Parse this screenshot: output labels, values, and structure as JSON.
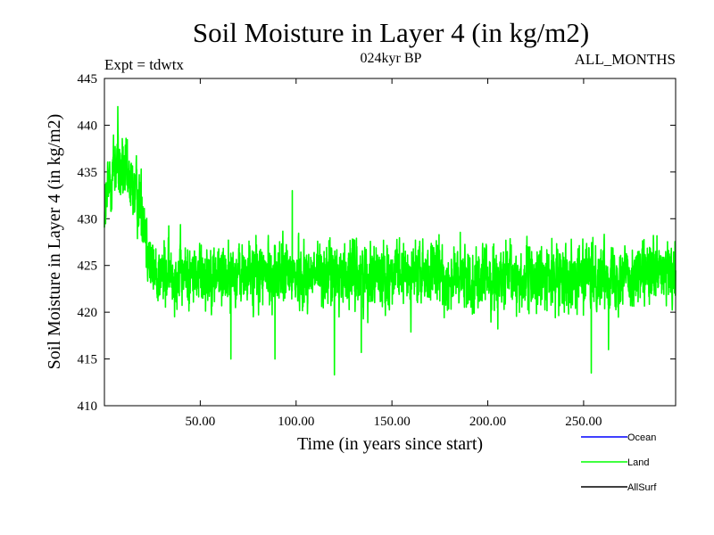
{
  "chart_data": {
    "type": "line",
    "title": "Soil Moisture in Layer 4 (in kg/m2)",
    "experiment_label": "Expt = tdwtx",
    "subtitle": "024kyr BP",
    "period_label": "ALL_MONTHS",
    "xlabel": "Time (in years since start)",
    "ylabel": "Soil Moisture in Layer 4 (in kg/m2)",
    "xlim": [
      0,
      298
    ],
    "ylim": [
      410,
      445
    ],
    "x_ticks": [
      50,
      100,
      150,
      200,
      250
    ],
    "x_tick_labels": [
      "50.00",
      "100.00",
      "150.00",
      "200.00",
      "250.00"
    ],
    "y_ticks": [
      410,
      415,
      420,
      425,
      430,
      435,
      440,
      445
    ],
    "y_tick_labels": [
      "410",
      "415",
      "420",
      "425",
      "430",
      "435",
      "440",
      "445"
    ],
    "series": [
      {
        "name": "Land",
        "color": "#00ff00",
        "samples_per_year": 12,
        "x": [
          0,
          3,
          6,
          9,
          12,
          15,
          18,
          21,
          24,
          27,
          30,
          40,
          50,
          60,
          70,
          80,
          90,
          100,
          110,
          120,
          130,
          140,
          150,
          160,
          170,
          180,
          190,
          200,
          210,
          220,
          230,
          240,
          250,
          260,
          270,
          280,
          290,
          298
        ],
        "mean": [
          431,
          434,
          436,
          435,
          434,
          433,
          432,
          430,
          425,
          424,
          424,
          424,
          424,
          424,
          424,
          424,
          424,
          424,
          424,
          424,
          424,
          424,
          424,
          424,
          424,
          423.5,
          423.5,
          423.5,
          423.5,
          423.5,
          423.5,
          424,
          424,
          424,
          424,
          424,
          424,
          424
        ],
        "amplitude": [
          3,
          4,
          4,
          4,
          3.5,
          3.5,
          3.5,
          3.5,
          3.5,
          3.2,
          3.2,
          3.2,
          3.2,
          3.2,
          3.2,
          3.2,
          3.2,
          3.2,
          3.2,
          3.2,
          3.2,
          3.2,
          3.2,
          3.2,
          3.2,
          3.2,
          3.2,
          3.2,
          3.2,
          3.2,
          3.2,
          3.2,
          3.2,
          3.2,
          3.2,
          3.2,
          3.2,
          3.2
        ],
        "peaks": [
          {
            "x": 7,
            "y": 442
          },
          {
            "x": 66,
            "y": 415
          },
          {
            "x": 89,
            "y": 415
          },
          {
            "x": 98,
            "y": 433
          },
          {
            "x": 120,
            "y": 413.3
          },
          {
            "x": 134,
            "y": 415.7
          },
          {
            "x": 254,
            "y": 413.5
          },
          {
            "x": 263,
            "y": 416
          }
        ]
      }
    ],
    "legend": {
      "placement": "bottom-right",
      "entries": [
        {
          "label": "Ocean",
          "color": "#0000ff"
        },
        {
          "label": "Land",
          "color": "#00ff00"
        },
        {
          "label": "AllSurf",
          "color": "#000000"
        }
      ]
    }
  }
}
